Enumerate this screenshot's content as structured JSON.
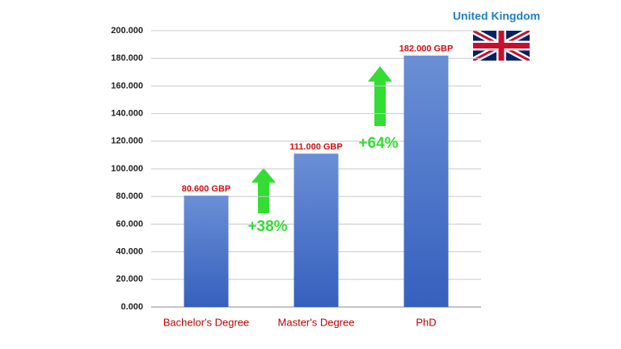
{
  "chart_data": {
    "type": "bar",
    "title": "United Kingdom",
    "categories": [
      "Bachelor's Degree",
      "Master's Degree",
      "PhD"
    ],
    "values": [
      80600,
      111000,
      182000
    ],
    "value_labels": [
      "80.600 GBP",
      "111.000 GBP",
      "182.000 GBP"
    ],
    "color": "#4a72c8",
    "ylim": [
      0,
      200000
    ],
    "yticks": [
      {
        "value": 0,
        "label": "0.000"
      },
      {
        "value": 20000,
        "label": "20.000"
      },
      {
        "value": 40000,
        "label": "40.000"
      },
      {
        "value": 60000,
        "label": "60.000"
      },
      {
        "value": 80000,
        "label": "80.000"
      },
      {
        "value": 100000,
        "label": "100.000"
      },
      {
        "value": 120000,
        "label": "120.000"
      },
      {
        "value": 140000,
        "label": "140.000"
      },
      {
        "value": 160000,
        "label": "160.000"
      },
      {
        "value": 180000,
        "label": "180.000"
      },
      {
        "value": 200000,
        "label": "200.000"
      }
    ],
    "grid": true,
    "annotations": [
      "+38%",
      "+64%"
    ]
  }
}
